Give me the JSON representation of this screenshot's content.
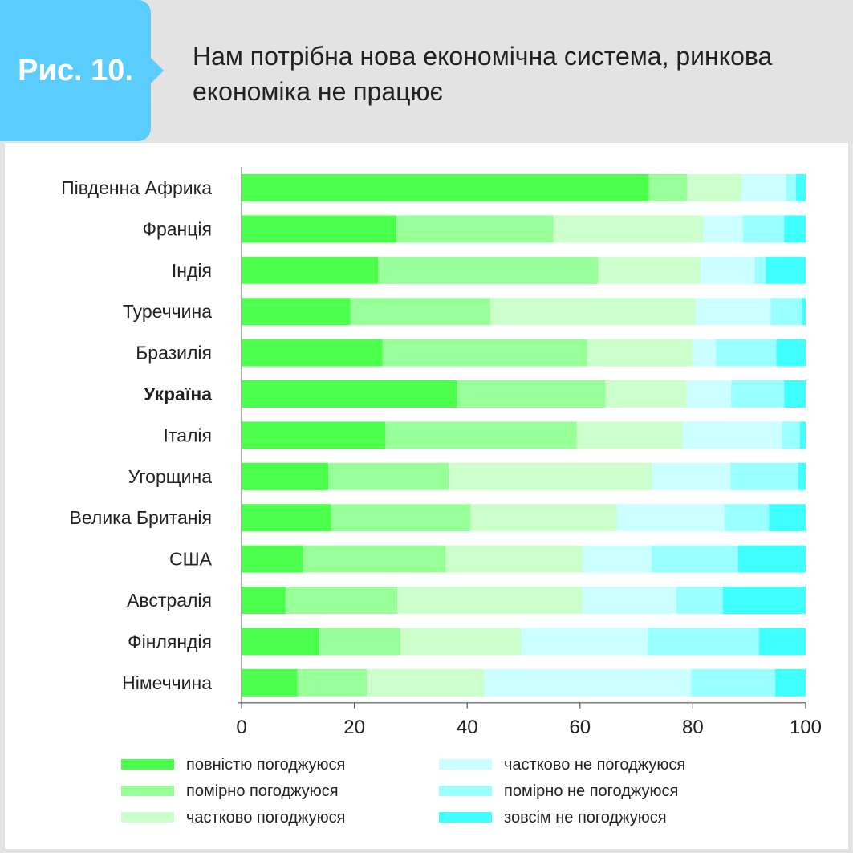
{
  "header": {
    "figure_label": "Рис. 10.",
    "title_line1": "Нам потрібна нова економічна система, ринкова",
    "title_line2": "економіка не працює"
  },
  "chart_data": {
    "type": "bar",
    "orientation": "horizontal",
    "stacked": true,
    "categories": [
      "Південна Африка",
      "Франція",
      "Індія",
      "Туреччина",
      "Бразилія",
      "Україна",
      "Італія",
      "Угорщина",
      "Велика Британія",
      "США",
      "Австралія",
      "Фінляндія",
      "Німеччина"
    ],
    "highlight_category": "Україна",
    "xlim": [
      0,
      100
    ],
    "xticks": [
      0,
      20,
      40,
      60,
      80,
      100
    ],
    "grid": false,
    "legend_position": "bottom",
    "series": [
      {
        "name": "повністю погоджуюся",
        "color": "#4cff4c",
        "values": [
          72.2,
          27.5,
          24.2,
          19.3,
          25.0,
          38.2,
          25.5,
          15.4,
          15.9,
          10.9,
          7.8,
          13.8,
          9.9
        ]
      },
      {
        "name": "помірно погоджуюся",
        "color": "#98ff98",
        "values": [
          6.8,
          27.8,
          39.0,
          24.8,
          36.3,
          26.3,
          33.9,
          21.3,
          24.7,
          25.3,
          19.8,
          14.4,
          12.3
        ]
      },
      {
        "name": "частково погоджуюся",
        "color": "#ccffcc",
        "values": [
          9.7,
          26.5,
          18.2,
          36.4,
          18.7,
          14.4,
          18.8,
          36.0,
          26.0,
          24.3,
          32.8,
          21.4,
          20.8
        ]
      },
      {
        "name": "частково не погоджуюся",
        "color": "#ccffff",
        "values": [
          7.8,
          7.1,
          9.6,
          13.3,
          4.1,
          7.9,
          17.6,
          14.0,
          19.0,
          12.2,
          16.7,
          22.4,
          36.7
        ]
      },
      {
        "name": "помірно не погоджуюся",
        "color": "#99ffff",
        "values": [
          1.8,
          7.3,
          1.9,
          5.5,
          10.7,
          9.4,
          3.2,
          12.0,
          7.9,
          15.3,
          8.2,
          19.7,
          14.9
        ]
      },
      {
        "name": "зовсім не погоджуюся",
        "color": "#40ffff",
        "values": [
          1.7,
          3.8,
          7.1,
          0.7,
          5.2,
          3.8,
          1.0,
          1.3,
          6.5,
          12.0,
          14.7,
          8.3,
          5.4
        ]
      }
    ]
  }
}
